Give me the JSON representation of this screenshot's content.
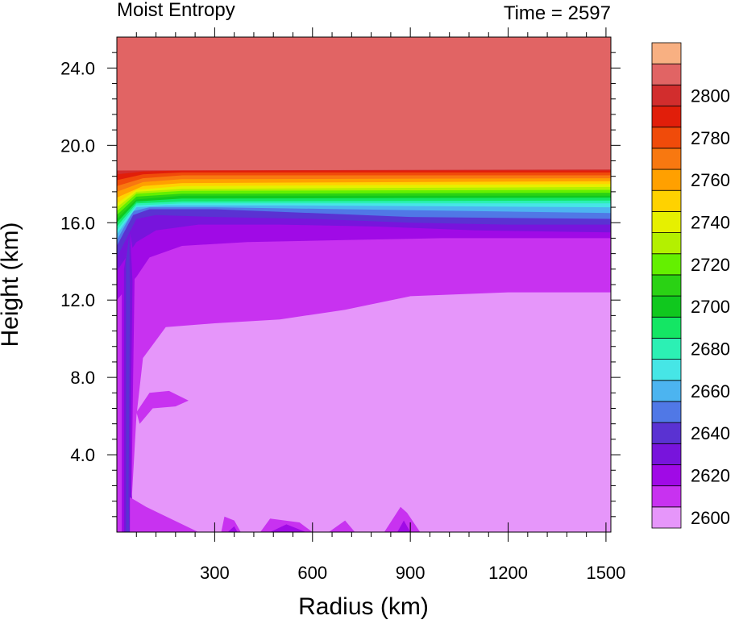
{
  "chart_data": {
    "type": "heatmap",
    "title": "Moist Entropy",
    "subtitle": "Time = 2597",
    "xlabel": "Radius (km)",
    "ylabel": "Height (km)",
    "xlim": [
      0,
      1515
    ],
    "ylim": [
      0,
      25.6
    ],
    "x_ticks": [
      300,
      600,
      900,
      1200,
      1500
    ],
    "x_tick_labels": [
      "300",
      "600",
      "900",
      "1200",
      "1500"
    ],
    "y_ticks": [
      4,
      8,
      12,
      16,
      20,
      24
    ],
    "y_tick_labels": [
      "4.0",
      "8.0",
      "12.0",
      "16.0",
      "20.0",
      "24.0"
    ],
    "grid": false,
    "colorbar": {
      "placement": "right",
      "levels_bottom_to_top": [
        2600,
        2610,
        2620,
        2630,
        2640,
        2650,
        2660,
        2670,
        2680,
        2690,
        2700,
        2710,
        2720,
        2730,
        2740,
        2750,
        2760,
        2770,
        2780,
        2790,
        2800,
        2810
      ],
      "colors_bottom_to_top": [
        "#e696fa",
        "#c832f0",
        "#a00ae6",
        "#7814dc",
        "#5a32d2",
        "#5078e6",
        "#4cb4f0",
        "#46e6e6",
        "#2cf0b4",
        "#14e664",
        "#10c81e",
        "#2ad214",
        "#64f000",
        "#b4f000",
        "#e6f000",
        "#ffd200",
        "#ffa000",
        "#f87810",
        "#f04b0a",
        "#e11e0a",
        "#d22d2d",
        "#e16464"
      ],
      "top_color": "#f8b082",
      "tick_values": [
        2600,
        2620,
        2640,
        2660,
        2680,
        2700,
        2720,
        2740,
        2760,
        2780,
        2800
      ],
      "tick_labels": [
        "2600",
        "2620",
        "2640",
        "2660",
        "2680",
        "2700",
        "2720",
        "2740",
        "2760",
        "2780",
        "2800"
      ]
    },
    "regions_description_values": {
      "stratosphere_above_km": 18.7,
      "stratosphere_value": 2810,
      "boundary_layer_value": 2600,
      "tropopause_km": 16.5
    }
  },
  "colors": {
    "background": "#ffffff",
    "frame": "#000000"
  }
}
